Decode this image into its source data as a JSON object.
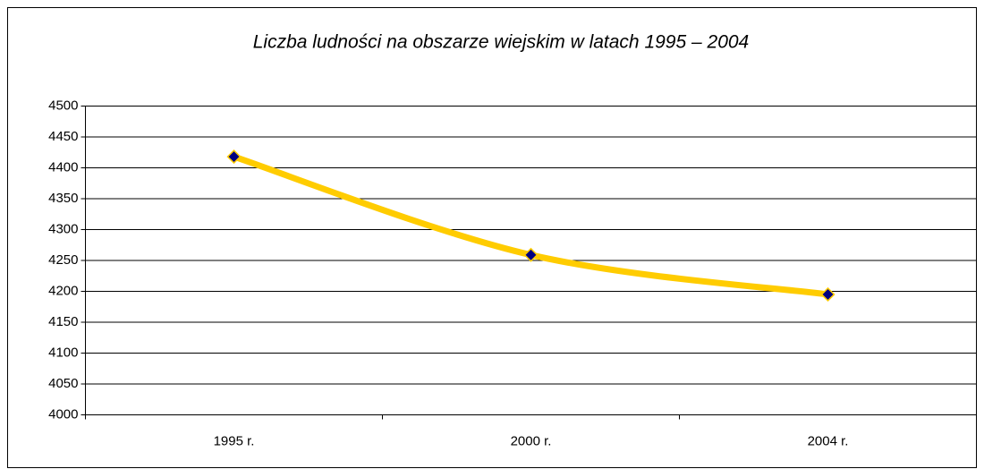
{
  "chart_data": {
    "type": "line",
    "title": "Liczba ludności na obszarze wiejskim w latach 1995 – 2004",
    "categories": [
      "1995 r.",
      "2000 r.",
      "2004 r."
    ],
    "series": [
      {
        "name": "Liczba ludności",
        "color": "#ffcc00",
        "marker_color": "#000080",
        "values": [
          4418,
          4259,
          4195
        ]
      }
    ],
    "ylim": [
      4000,
      4500
    ],
    "yticks": [
      4000,
      4050,
      4100,
      4150,
      4200,
      4250,
      4300,
      4350,
      4400,
      4450,
      4500
    ],
    "grid": true
  }
}
